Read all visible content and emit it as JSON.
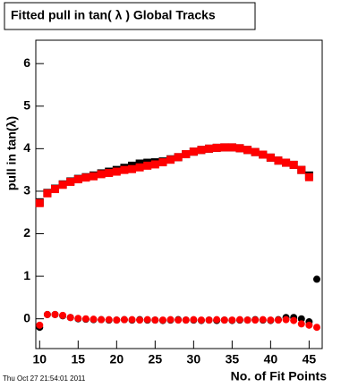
{
  "chart_data": {
    "type": "scatter",
    "title": "Fitted pull in tan( λ )  Global Tracks",
    "x_label": "No. of Fit Points",
    "y_label": "pull in tan(λ)",
    "annotation": "Thu Oct 27 21:54:01 2011",
    "xlim": [
      9.5,
      46.7
    ],
    "ylim": [
      -0.7,
      6.55
    ],
    "xticks": [
      10,
      15,
      20,
      25,
      30,
      35,
      40,
      45
    ],
    "yticks": [
      0,
      1,
      2,
      3,
      4,
      5,
      6
    ],
    "series": [
      {
        "marker": "square",
        "color": "#000000",
        "x": [
          10,
          11,
          12,
          13,
          14,
          15,
          16,
          17,
          18,
          19,
          20,
          21,
          22,
          23,
          24,
          25,
          26,
          27,
          28,
          29,
          30,
          31,
          32,
          33,
          34,
          35,
          36,
          37,
          38,
          39,
          40,
          41,
          42,
          43,
          44,
          45
        ],
        "values": [
          2.74,
          2.96,
          3.06,
          3.16,
          3.23,
          3.29,
          3.33,
          3.37,
          3.42,
          3.46,
          3.5,
          3.55,
          3.6,
          3.65,
          3.67,
          3.68,
          3.7,
          3.75,
          3.8,
          3.87,
          3.93,
          3.97,
          4.0,
          4.02,
          4.03,
          4.03,
          4.01,
          3.97,
          3.92,
          3.86,
          3.79,
          3.72,
          3.67,
          3.62,
          3.5,
          3.37
        ]
      },
      {
        "marker": "square",
        "color": "#ff0000",
        "x": [
          10,
          11,
          12,
          13,
          14,
          15,
          16,
          17,
          18,
          19,
          20,
          21,
          22,
          23,
          24,
          25,
          26,
          27,
          28,
          29,
          30,
          31,
          32,
          33,
          34,
          35,
          36,
          37,
          38,
          39,
          40,
          41,
          42,
          43,
          44,
          45
        ],
        "values": [
          2.72,
          2.95,
          3.05,
          3.15,
          3.22,
          3.28,
          3.32,
          3.35,
          3.4,
          3.43,
          3.46,
          3.5,
          3.52,
          3.56,
          3.6,
          3.63,
          3.68,
          3.74,
          3.8,
          3.87,
          3.93,
          3.97,
          4.0,
          4.02,
          4.03,
          4.03,
          4.01,
          3.97,
          3.92,
          3.86,
          3.79,
          3.72,
          3.67,
          3.62,
          3.5,
          3.33
        ]
      },
      {
        "marker": "circle",
        "color": "#000000",
        "x": [
          10,
          11,
          12,
          13,
          14,
          15,
          16,
          17,
          18,
          19,
          20,
          21,
          22,
          23,
          24,
          25,
          26,
          27,
          28,
          29,
          30,
          31,
          32,
          33,
          34,
          35,
          36,
          37,
          38,
          39,
          40,
          41,
          42,
          43,
          44,
          45,
          46
        ],
        "values": [
          -0.2,
          0.1,
          0.1,
          0.07,
          0.03,
          0.0,
          -0.01,
          -0.02,
          -0.02,
          -0.03,
          -0.03,
          -0.02,
          -0.03,
          -0.02,
          -0.03,
          -0.03,
          -0.04,
          -0.03,
          -0.02,
          -0.03,
          -0.03,
          -0.04,
          -0.03,
          -0.04,
          -0.03,
          -0.04,
          -0.03,
          -0.03,
          -0.02,
          -0.03,
          -0.04,
          -0.02,
          0.03,
          0.03,
          0.0,
          -0.07,
          0.93
        ]
      },
      {
        "marker": "circle",
        "color": "#ff0000",
        "x": [
          10,
          11,
          12,
          13,
          14,
          15,
          16,
          17,
          18,
          19,
          20,
          21,
          22,
          23,
          24,
          25,
          26,
          27,
          28,
          29,
          30,
          31,
          32,
          33,
          34,
          35,
          36,
          37,
          38,
          39,
          40,
          41,
          42,
          43,
          44,
          45,
          46
        ],
        "values": [
          -0.15,
          0.1,
          0.1,
          0.08,
          0.03,
          0.01,
          0.0,
          -0.01,
          -0.02,
          -0.02,
          -0.03,
          -0.02,
          -0.02,
          -0.03,
          -0.02,
          -0.03,
          -0.03,
          -0.02,
          -0.03,
          -0.03,
          -0.02,
          -0.03,
          -0.03,
          -0.02,
          -0.03,
          -0.03,
          -0.02,
          -0.03,
          -0.03,
          -0.02,
          -0.03,
          -0.03,
          -0.02,
          -0.04,
          -0.12,
          -0.15,
          -0.2
        ]
      }
    ]
  }
}
